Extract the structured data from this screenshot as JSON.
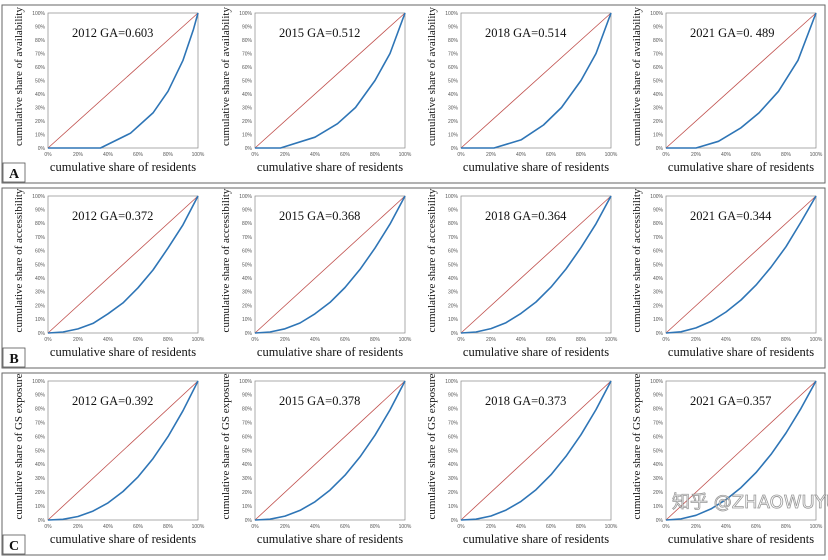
{
  "chart_data": [
    {
      "type": "line",
      "row": "A",
      "title": "2012  GA=0.603",
      "xlabel": "cumulative share of residents",
      "ylabel": "cumulative share of availability",
      "xlim": [
        0,
        100
      ],
      "ylim": [
        0,
        100
      ],
      "series": [
        {
          "name": "equality line",
          "color": "#c0504d",
          "points": [
            [
              0,
              0
            ],
            [
              100,
              100
            ]
          ]
        },
        {
          "name": "Lorenz curve",
          "color": "#2e75b6",
          "points": [
            [
              0,
              0
            ],
            [
              35,
              0
            ],
            [
              55,
              11
            ],
            [
              70,
              26
            ],
            [
              80,
              42
            ],
            [
              90,
              65
            ],
            [
              97,
              88
            ],
            [
              100,
              100
            ]
          ]
        }
      ]
    },
    {
      "type": "line",
      "row": "A",
      "title": "2015  GA=0.512",
      "xlabel": "cumulative share of residents",
      "ylabel": "cumulative share of availability",
      "xlim": [
        0,
        100
      ],
      "ylim": [
        0,
        100
      ],
      "series": [
        {
          "name": "equality line",
          "color": "#c0504d",
          "points": [
            [
              0,
              0
            ],
            [
              100,
              100
            ]
          ]
        },
        {
          "name": "Lorenz curve",
          "color": "#2e75b6",
          "points": [
            [
              0,
              0
            ],
            [
              17,
              0
            ],
            [
              40,
              8
            ],
            [
              55,
              18
            ],
            [
              67,
              30
            ],
            [
              80,
              50
            ],
            [
              90,
              70
            ],
            [
              100,
              100
            ]
          ]
        }
      ]
    },
    {
      "type": "line",
      "row": "A",
      "title": "2018  GA=0.514",
      "xlabel": "cumulative share of residents",
      "ylabel": "cumulative share of availability",
      "xlim": [
        0,
        100
      ],
      "ylim": [
        0,
        100
      ],
      "series": [
        {
          "name": "equality line",
          "color": "#c0504d",
          "points": [
            [
              0,
              0
            ],
            [
              100,
              100
            ]
          ]
        },
        {
          "name": "Lorenz curve",
          "color": "#2e75b6",
          "points": [
            [
              0,
              0
            ],
            [
              22,
              0
            ],
            [
              40,
              6
            ],
            [
              55,
              17
            ],
            [
              67,
              30
            ],
            [
              80,
              50
            ],
            [
              90,
              70
            ],
            [
              100,
              100
            ]
          ]
        }
      ]
    },
    {
      "type": "line",
      "row": "A",
      "title": "2021  GA=0. 489",
      "xlabel": "cumulative share of residents",
      "ylabel": "cumulative share of availability",
      "xlim": [
        0,
        100
      ],
      "ylim": [
        0,
        100
      ],
      "series": [
        {
          "name": "equality line",
          "color": "#c0504d",
          "points": [
            [
              0,
              0
            ],
            [
              100,
              100
            ]
          ]
        },
        {
          "name": "Lorenz curve",
          "color": "#2e75b6",
          "points": [
            [
              0,
              0
            ],
            [
              20,
              0
            ],
            [
              35,
              5
            ],
            [
              50,
              15
            ],
            [
              62,
              26
            ],
            [
              75,
              42
            ],
            [
              88,
              65
            ],
            [
              100,
              100
            ]
          ]
        }
      ]
    },
    {
      "type": "line",
      "row": "B",
      "title": "2012  GA=0.372",
      "xlabel": "cumulative share of residents",
      "ylabel": "cumulative share of accessibility",
      "xlim": [
        0,
        100
      ],
      "ylim": [
        0,
        100
      ],
      "series": [
        {
          "name": "equality line",
          "color": "#c0504d",
          "points": [
            [
              0,
              0
            ],
            [
              100,
              100
            ]
          ]
        },
        {
          "name": "Lorenz curve",
          "color": "#2e75b6",
          "points": [
            [
              0,
              0
            ],
            [
              10,
              0.7
            ],
            [
              20,
              3
            ],
            [
              30,
              7
            ],
            [
              40,
              14
            ],
            [
              50,
              22
            ],
            [
              60,
              33
            ],
            [
              70,
              46
            ],
            [
              80,
              62
            ],
            [
              90,
              79
            ],
            [
              100,
              100
            ]
          ]
        }
      ]
    },
    {
      "type": "line",
      "row": "B",
      "title": "2015  GA=0.368",
      "xlabel": "cumulative share of residents",
      "ylabel": "cumulative share of accessibility",
      "xlim": [
        0,
        100
      ],
      "ylim": [
        0,
        100
      ],
      "series": [
        {
          "name": "equality line",
          "color": "#c0504d",
          "points": [
            [
              0,
              0
            ],
            [
              100,
              100
            ]
          ]
        },
        {
          "name": "Lorenz curve",
          "color": "#2e75b6",
          "points": [
            [
              0,
              0
            ],
            [
              10,
              0.7
            ],
            [
              20,
              3.1
            ],
            [
              30,
              7.3
            ],
            [
              40,
              14
            ],
            [
              50,
              22.3
            ],
            [
              60,
              33.2
            ],
            [
              70,
              46.4
            ],
            [
              80,
              62
            ],
            [
              90,
              79.5
            ],
            [
              100,
              100
            ]
          ]
        }
      ]
    },
    {
      "type": "line",
      "row": "B",
      "title": "2018  GA=0.364",
      "xlabel": "cumulative share of residents",
      "ylabel": "cumulative share of accessibility",
      "xlim": [
        0,
        100
      ],
      "ylim": [
        0,
        100
      ],
      "series": [
        {
          "name": "equality line",
          "color": "#c0504d",
          "points": [
            [
              0,
              0
            ],
            [
              100,
              100
            ]
          ]
        },
        {
          "name": "Lorenz curve",
          "color": "#2e75b6",
          "points": [
            [
              0,
              0
            ],
            [
              10,
              0.7
            ],
            [
              20,
              3.2
            ],
            [
              30,
              7.5
            ],
            [
              40,
              14.3
            ],
            [
              50,
              22.6
            ],
            [
              60,
              33.5
            ],
            [
              70,
              46.7
            ],
            [
              80,
              62.3
            ],
            [
              90,
              79.7
            ],
            [
              100,
              100
            ]
          ]
        }
      ]
    },
    {
      "type": "line",
      "row": "B",
      "title": "2021  GA=0.344",
      "xlabel": "cumulative share of residents",
      "ylabel": "cumulative share of accessibility",
      "xlim": [
        0,
        100
      ],
      "ylim": [
        0,
        100
      ],
      "series": [
        {
          "name": "equality line",
          "color": "#c0504d",
          "points": [
            [
              0,
              0
            ],
            [
              100,
              100
            ]
          ]
        },
        {
          "name": "Lorenz curve",
          "color": "#2e75b6",
          "points": [
            [
              0,
              0
            ],
            [
              10,
              0.9
            ],
            [
              20,
              3.7
            ],
            [
              30,
              8.5
            ],
            [
              40,
              15.3
            ],
            [
              50,
              24.1
            ],
            [
              60,
              35
            ],
            [
              70,
              48
            ],
            [
              80,
              63
            ],
            [
              90,
              81
            ],
            [
              100,
              100
            ]
          ]
        }
      ]
    },
    {
      "type": "line",
      "row": "C",
      "title": "2012  GA=0.392",
      "xlabel": "cumulative share of residents",
      "ylabel": "cumulative share of GS exposure",
      "xlim": [
        0,
        100
      ],
      "ylim": [
        0,
        100
      ],
      "series": [
        {
          "name": "equality line",
          "color": "#c0504d",
          "points": [
            [
              0,
              0
            ],
            [
              100,
              100
            ]
          ]
        },
        {
          "name": "Lorenz curve",
          "color": "#2e75b6",
          "points": [
            [
              0,
              0
            ],
            [
              10,
              0.5
            ],
            [
              20,
              2.5
            ],
            [
              30,
              6.4
            ],
            [
              40,
              12.3
            ],
            [
              50,
              20.5
            ],
            [
              60,
              31
            ],
            [
              70,
              44.2
            ],
            [
              80,
              60
            ],
            [
              90,
              78.6
            ],
            [
              100,
              100
            ]
          ]
        }
      ]
    },
    {
      "type": "line",
      "row": "C",
      "title": "2015  GA=0.378",
      "xlabel": "cumulative share of residents",
      "ylabel": "cumulative share of GS exposure",
      "xlim": [
        0,
        100
      ],
      "ylim": [
        0,
        100
      ],
      "series": [
        {
          "name": "equality line",
          "color": "#c0504d",
          "points": [
            [
              0,
              0
            ],
            [
              100,
              100
            ]
          ]
        },
        {
          "name": "Lorenz curve",
          "color": "#2e75b6",
          "points": [
            [
              0,
              0
            ],
            [
              10,
              0.6
            ],
            [
              20,
              2.8
            ],
            [
              30,
              6.9
            ],
            [
              40,
              13.1
            ],
            [
              50,
              21.5
            ],
            [
              60,
              32.2
            ],
            [
              70,
              45.4
            ],
            [
              80,
              61
            ],
            [
              90,
              79.2
            ],
            [
              100,
              100
            ]
          ]
        }
      ]
    },
    {
      "type": "line",
      "row": "C",
      "title": "2018  GA=0.373",
      "xlabel": "cumulative share of residents",
      "ylabel": "cumulative share of GS exposure",
      "xlim": [
        0,
        100
      ],
      "ylim": [
        0,
        100
      ],
      "series": [
        {
          "name": "equality line",
          "color": "#c0504d",
          "points": [
            [
              0,
              0
            ],
            [
              100,
              100
            ]
          ]
        },
        {
          "name": "Lorenz curve",
          "color": "#2e75b6",
          "points": [
            [
              0,
              0
            ],
            [
              10,
              0.6
            ],
            [
              20,
              2.9
            ],
            [
              30,
              7.1
            ],
            [
              40,
              13.4
            ],
            [
              50,
              21.8
            ],
            [
              60,
              32.6
            ],
            [
              70,
              45.8
            ],
            [
              80,
              61.4
            ],
            [
              90,
              79.4
            ],
            [
              100,
              100
            ]
          ]
        }
      ]
    },
    {
      "type": "line",
      "row": "C",
      "title": "2021  GA=0.357",
      "xlabel": "cumulative share of residents",
      "ylabel": "cumulative share of GS exposure",
      "xlim": [
        0,
        100
      ],
      "ylim": [
        0,
        100
      ],
      "series": [
        {
          "name": "equality line",
          "color": "#c0504d",
          "points": [
            [
              0,
              0
            ],
            [
              100,
              100
            ]
          ]
        },
        {
          "name": "Lorenz curve",
          "color": "#2e75b6",
          "points": [
            [
              0,
              0
            ],
            [
              10,
              0.8
            ],
            [
              20,
              3.4
            ],
            [
              30,
              8
            ],
            [
              40,
              14.7
            ],
            [
              50,
              23.3
            ],
            [
              60,
              34.1
            ],
            [
              70,
              47.2
            ],
            [
              80,
              62.6
            ],
            [
              90,
              80.3
            ],
            [
              100,
              100
            ]
          ]
        }
      ]
    }
  ],
  "row_labels": [
    "A",
    "B",
    "C"
  ],
  "y_ticks": [
    "0%",
    "10%",
    "20%",
    "30%",
    "40%",
    "50%",
    "60%",
    "70%",
    "80%",
    "90%",
    "100%"
  ],
  "x_ticks": [
    "0%",
    "20%",
    "40%",
    "60%",
    "80%",
    "100%"
  ],
  "watermark": "知乎 @ZHAOWUYU"
}
